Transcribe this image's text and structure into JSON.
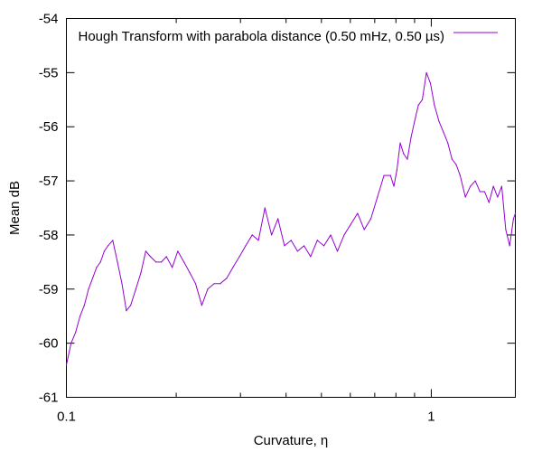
{
  "chart_data": {
    "type": "line",
    "title": "",
    "xlabel": "Curvature, η",
    "ylabel": "Mean dB",
    "xscale": "log",
    "xlim": [
      0.1,
      1.7
    ],
    "ylim": [
      -61,
      -54
    ],
    "grid": false,
    "legend_position": "top-right",
    "x_ticks": [
      {
        "value": 0.1,
        "label": "0.1"
      },
      {
        "value": 1,
        "label": "1"
      }
    ],
    "x_minor_ticks": [
      0.2,
      0.3,
      0.4,
      0.5,
      0.6,
      0.7,
      0.8,
      0.9
    ],
    "y_ticks": [
      {
        "value": -61,
        "label": "-61"
      },
      {
        "value": -60,
        "label": "-60"
      },
      {
        "value": -59,
        "label": "-59"
      },
      {
        "value": -58,
        "label": "-58"
      },
      {
        "value": -57,
        "label": "-57"
      },
      {
        "value": -56,
        "label": "-56"
      },
      {
        "value": -55,
        "label": "-55"
      },
      {
        "value": -54,
        "label": "-54"
      }
    ],
    "series": [
      {
        "name": "Hough Transform with parabola distance (0.50 mHz, 0.50 µs)",
        "color": "#9400d3",
        "x": [
          0.1,
          0.103,
          0.106,
          0.109,
          0.112,
          0.115,
          0.118,
          0.121,
          0.124,
          0.127,
          0.13,
          0.134,
          0.138,
          0.142,
          0.146,
          0.15,
          0.155,
          0.16,
          0.165,
          0.17,
          0.176,
          0.182,
          0.188,
          0.195,
          0.202,
          0.21,
          0.218,
          0.226,
          0.235,
          0.244,
          0.254,
          0.264,
          0.275,
          0.286,
          0.298,
          0.31,
          0.323,
          0.336,
          0.35,
          0.365,
          0.38,
          0.396,
          0.413,
          0.43,
          0.448,
          0.467,
          0.487,
          0.508,
          0.53,
          0.553,
          0.577,
          0.602,
          0.628,
          0.655,
          0.683,
          0.712,
          0.742,
          0.773,
          0.79,
          0.805,
          0.822,
          0.84,
          0.86,
          0.88,
          0.9,
          0.922,
          0.945,
          0.97,
          0.995,
          1.02,
          1.05,
          1.08,
          1.11,
          1.14,
          1.17,
          1.2,
          1.24,
          1.28,
          1.32,
          1.36,
          1.4,
          1.44,
          1.48,
          1.52,
          1.56,
          1.6,
          1.64,
          1.68,
          1.7
        ],
        "y": [
          -60.4,
          -60.0,
          -59.8,
          -59.5,
          -59.3,
          -59.0,
          -58.8,
          -58.6,
          -58.5,
          -58.3,
          -58.2,
          -58.1,
          -58.5,
          -58.9,
          -59.4,
          -59.3,
          -59.0,
          -58.7,
          -58.3,
          -58.4,
          -58.5,
          -58.5,
          -58.4,
          -58.6,
          -58.3,
          -58.5,
          -58.7,
          -58.9,
          -59.3,
          -59.0,
          -58.9,
          -58.9,
          -58.8,
          -58.6,
          -58.4,
          -58.2,
          -58.0,
          -58.1,
          -57.5,
          -58.0,
          -57.7,
          -58.2,
          -58.1,
          -58.3,
          -58.2,
          -58.4,
          -58.1,
          -58.2,
          -58.0,
          -58.3,
          -58.0,
          -57.8,
          -57.6,
          -57.9,
          -57.7,
          -57.3,
          -56.9,
          -56.9,
          -57.1,
          -56.8,
          -56.3,
          -56.5,
          -56.6,
          -56.2,
          -55.9,
          -55.6,
          -55.5,
          -55.0,
          -55.2,
          -55.6,
          -55.9,
          -56.1,
          -56.3,
          -56.6,
          -56.7,
          -56.9,
          -57.3,
          -57.1,
          -57.0,
          -57.2,
          -57.2,
          -57.4,
          -57.1,
          -57.3,
          -57.1,
          -57.9,
          -58.2,
          -57.7,
          -57.6
        ]
      }
    ]
  }
}
